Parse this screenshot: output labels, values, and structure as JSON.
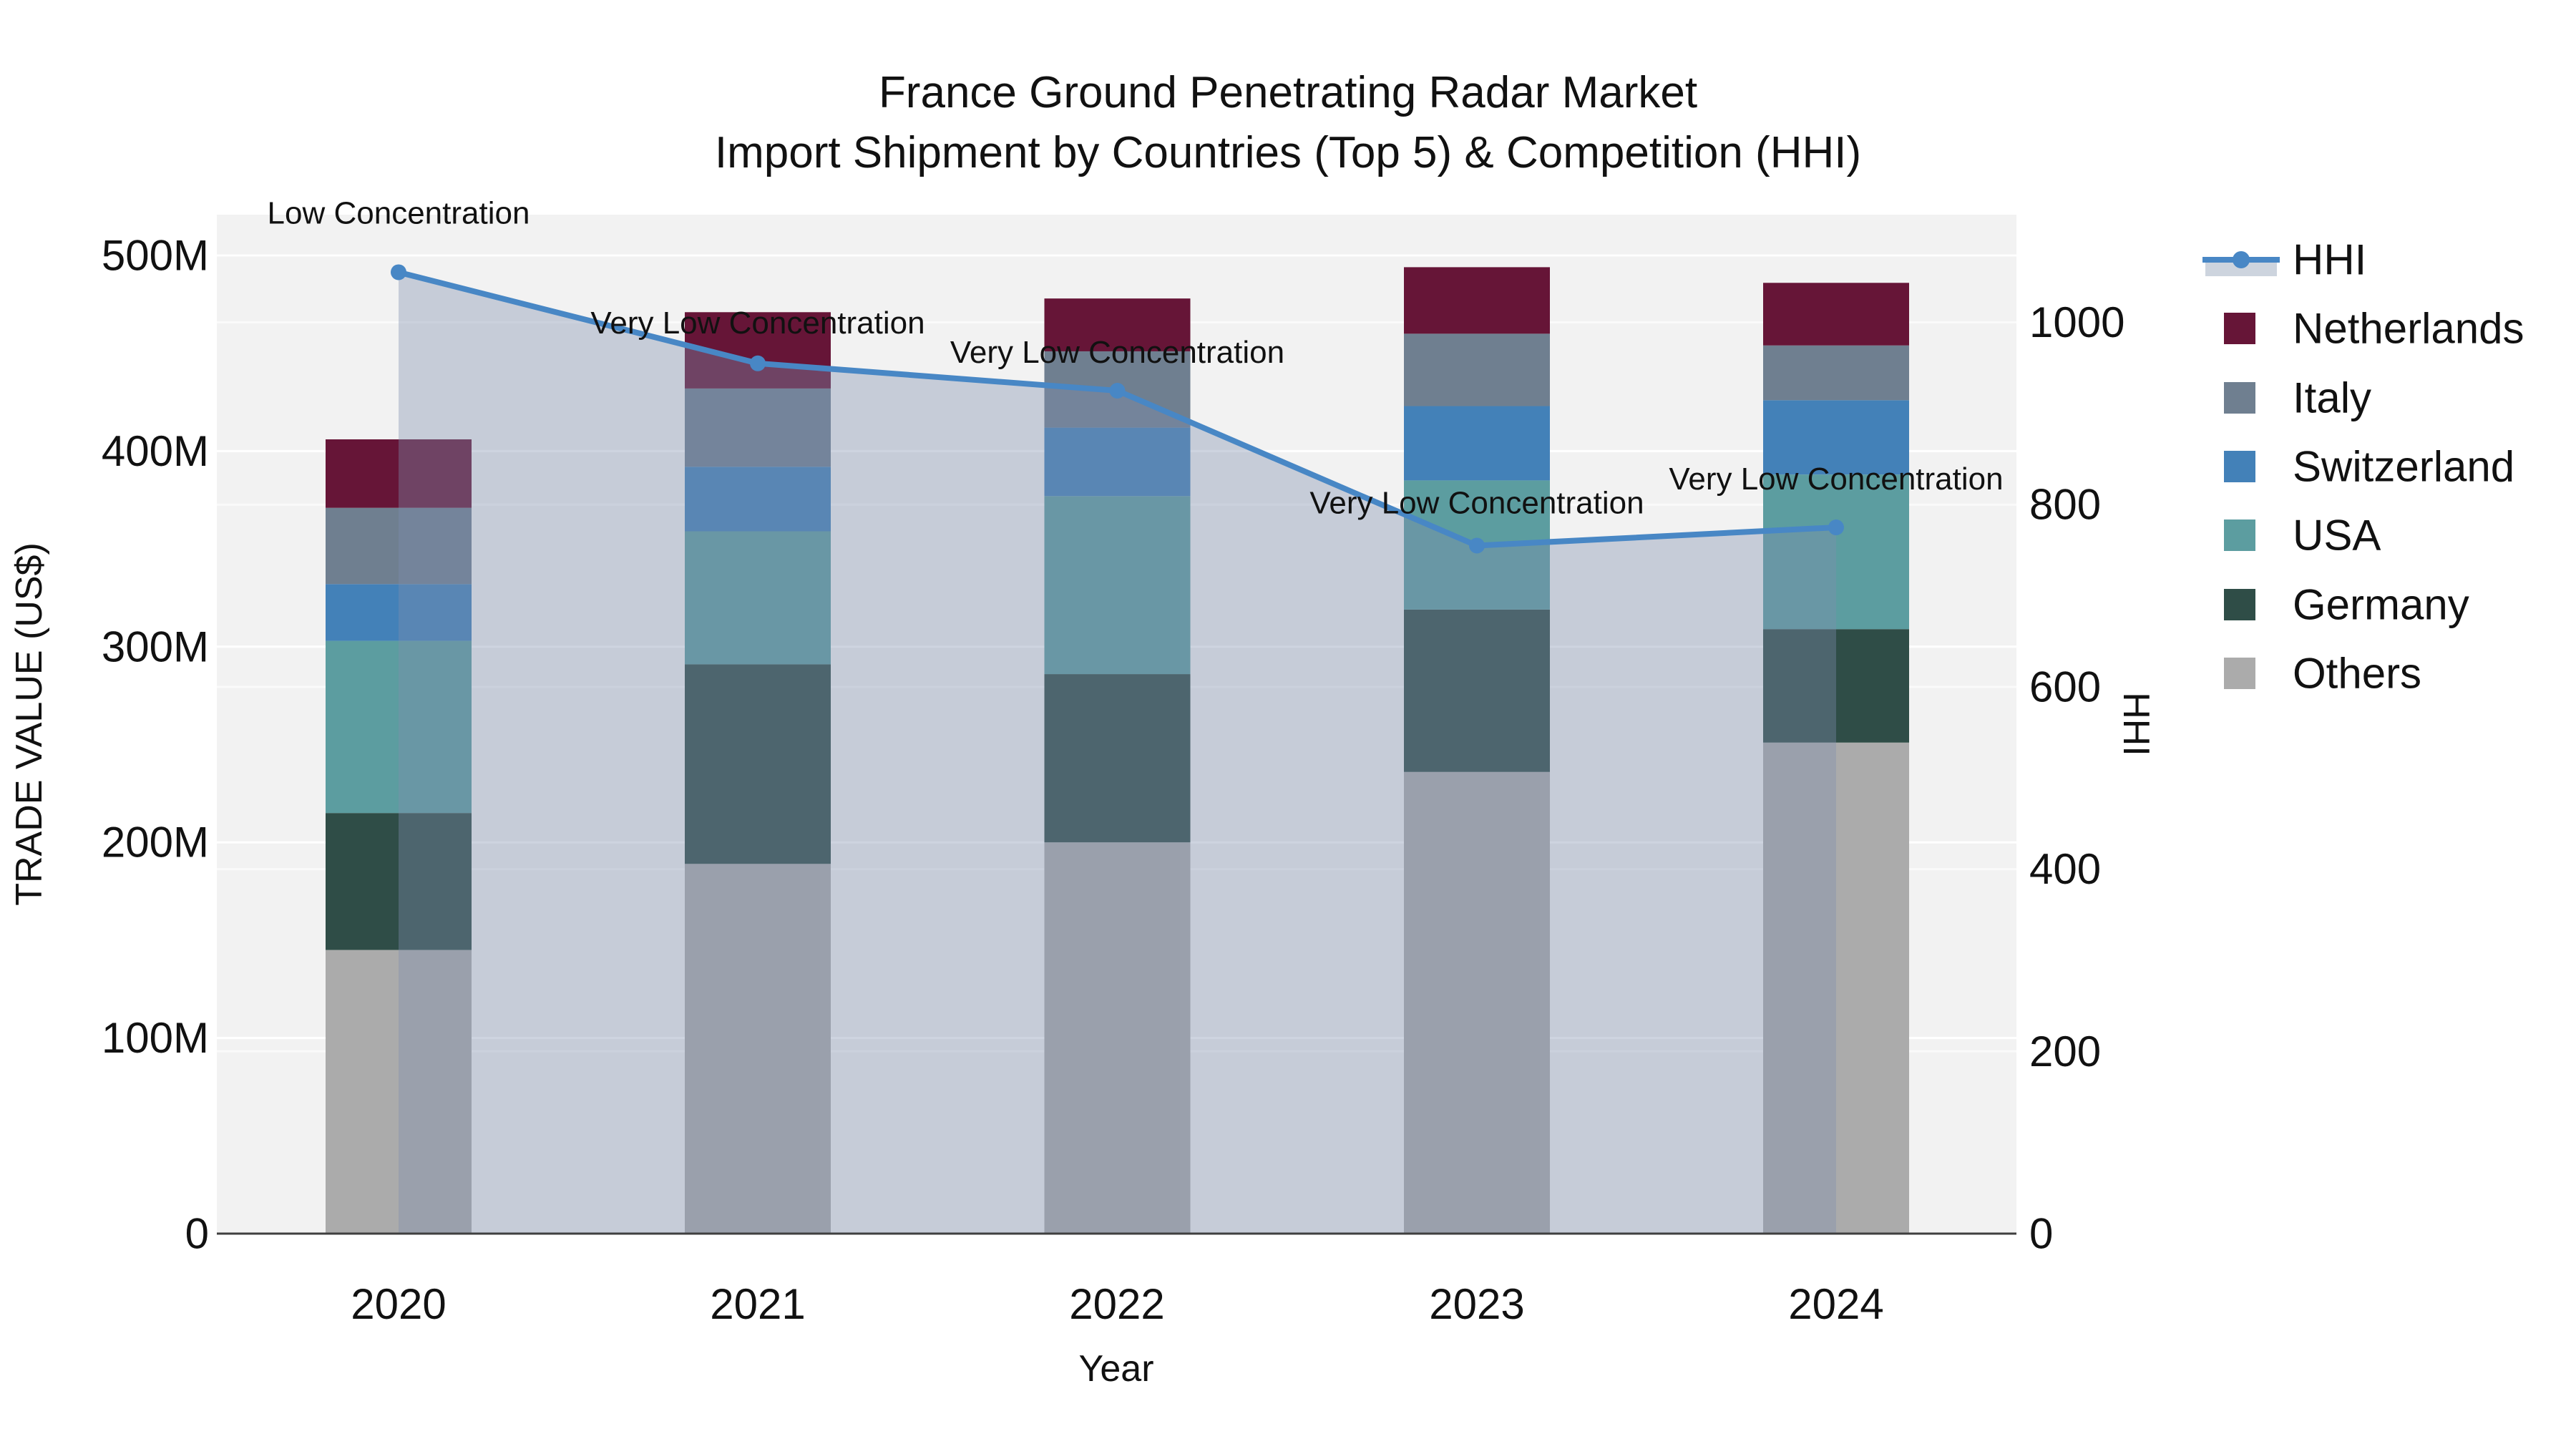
{
  "title": {
    "line1": "France Ground Penetrating Radar Market",
    "line2": "Import Shipment by Countries (Top 5) & Competition (HHI)"
  },
  "axes": {
    "left": {
      "title": "TRADE VALUE (US$)",
      "ticks": [
        "0",
        "100M",
        "200M",
        "300M",
        "400M",
        "500M"
      ]
    },
    "right": {
      "title": "HHI",
      "ticks": [
        "0",
        "200",
        "400",
        "600",
        "800",
        "1000"
      ]
    },
    "x": {
      "title": "Year",
      "ticks": [
        "2020",
        "2021",
        "2022",
        "2023",
        "2024"
      ]
    }
  },
  "legend": {
    "items": [
      {
        "label": "HHI",
        "type": "line",
        "color": "#4887C5"
      },
      {
        "label": "Netherlands",
        "type": "swatch",
        "color": "#661537"
      },
      {
        "label": "Italy",
        "type": "swatch",
        "color": "#6F7F90"
      },
      {
        "label": "Switzerland",
        "type": "swatch",
        "color": "#4381B8"
      },
      {
        "label": "USA",
        "type": "swatch",
        "color": "#5C9DA0"
      },
      {
        "label": "Germany",
        "type": "swatch",
        "color": "#2F4D47"
      },
      {
        "label": "Others",
        "type": "swatch",
        "color": "#ABABAB"
      }
    ]
  },
  "annotations": [
    {
      "year": "2020",
      "text": "Low Concentration"
    },
    {
      "year": "2021",
      "text": "Very Low Concentration"
    },
    {
      "year": "2022",
      "text": "Very Low Concentration"
    },
    {
      "year": "2023",
      "text": "Very Low Concentration"
    },
    {
      "year": "2024",
      "text": "Very Low Concentration"
    }
  ],
  "colors": {
    "plot_bg": "#F2F2F2",
    "grid_left": "#FFFFFF",
    "grid_right": "#FFFFFF",
    "axis_line": "#3F3F3F",
    "hhi_line": "#4887C5",
    "hhi_fill": "rgba(126,142,173,0.38)",
    "legend_band": "#CDD4DE"
  },
  "chart_data": {
    "type": "bar+line",
    "title": "France Ground Penetrating Radar Market — Import Shipment by Countries (Top 5) & Competition (HHI)",
    "categories": [
      "2020",
      "2021",
      "2022",
      "2023",
      "2024"
    ],
    "bar_value_unit": "Million US$",
    "stack_order_bottom_to_top": [
      "Others",
      "Germany",
      "USA",
      "Switzerland",
      "Italy",
      "Netherlands"
    ],
    "series": [
      {
        "name": "Others",
        "color": "#ABABAB",
        "values": [
          145,
          189,
          200,
          236,
          251
        ]
      },
      {
        "name": "Germany",
        "color": "#2F4D47",
        "values": [
          70,
          102,
          86,
          83,
          58
        ]
      },
      {
        "name": "USA",
        "color": "#5C9DA0",
        "values": [
          88,
          68,
          91,
          66,
          79
        ]
      },
      {
        "name": "Switzerland",
        "color": "#4381B8",
        "values": [
          29,
          33,
          35,
          38,
          38
        ]
      },
      {
        "name": "Italy",
        "color": "#6F7F90",
        "values": [
          39,
          40,
          39,
          37,
          28
        ]
      },
      {
        "name": "Netherlands",
        "color": "#661537",
        "values": [
          35,
          39,
          27,
          34,
          32
        ]
      }
    ],
    "bar_totals": [
      406,
      471,
      478,
      494,
      486
    ],
    "line": {
      "name": "HHI",
      "color": "#4887C5",
      "fill": "rgba(126,142,173,0.38)",
      "values": [
        1055,
        955,
        925,
        755,
        775
      ]
    },
    "xlabel": "Year",
    "ylabel_left": "TRADE VALUE (US$)",
    "ylim_left_millions": [
      0,
      500
    ],
    "ylabel_right": "HHI",
    "ylim_right": [
      0,
      1000
    ],
    "grid": true,
    "legend_position": "right"
  }
}
